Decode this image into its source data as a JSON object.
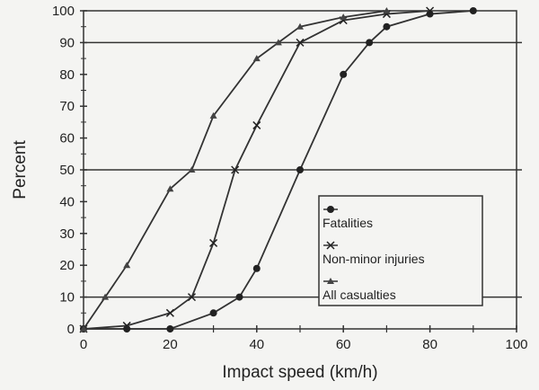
{
  "chart_data": {
    "type": "line",
    "title": "",
    "xlabel": "Impact speed (km/h)",
    "ylabel": "Percent",
    "xlim": [
      0,
      100
    ],
    "ylim": [
      0,
      100
    ],
    "xticks": [
      0,
      20,
      40,
      60,
      80,
      100
    ],
    "yticks": [
      0,
      10,
      20,
      30,
      40,
      50,
      60,
      70,
      80,
      90,
      100
    ],
    "reference_lines": [
      10,
      50,
      90
    ],
    "legend_position": "bottom-right",
    "series": [
      {
        "name": "Fatalities",
        "marker": "circle",
        "x": [
          0,
          10,
          20,
          30,
          36,
          40,
          50,
          60,
          66,
          70,
          80,
          90
        ],
        "y": [
          0,
          0,
          0,
          5,
          10,
          19,
          50,
          80,
          90,
          95,
          99,
          100
        ]
      },
      {
        "name": "Non-minor injuries",
        "marker": "x",
        "x": [
          0,
          10,
          20,
          25,
          30,
          35,
          40,
          50,
          60,
          70,
          80
        ],
        "y": [
          0,
          1,
          5,
          10,
          27,
          50,
          64,
          90,
          97,
          99,
          100
        ]
      },
      {
        "name": "All casualties",
        "marker": "triangle",
        "x": [
          0,
          5,
          10,
          20,
          25,
          30,
          40,
          45,
          50,
          60,
          70
        ],
        "y": [
          0,
          10,
          20,
          44,
          50,
          67,
          85,
          90,
          95,
          98,
          100
        ]
      }
    ]
  }
}
